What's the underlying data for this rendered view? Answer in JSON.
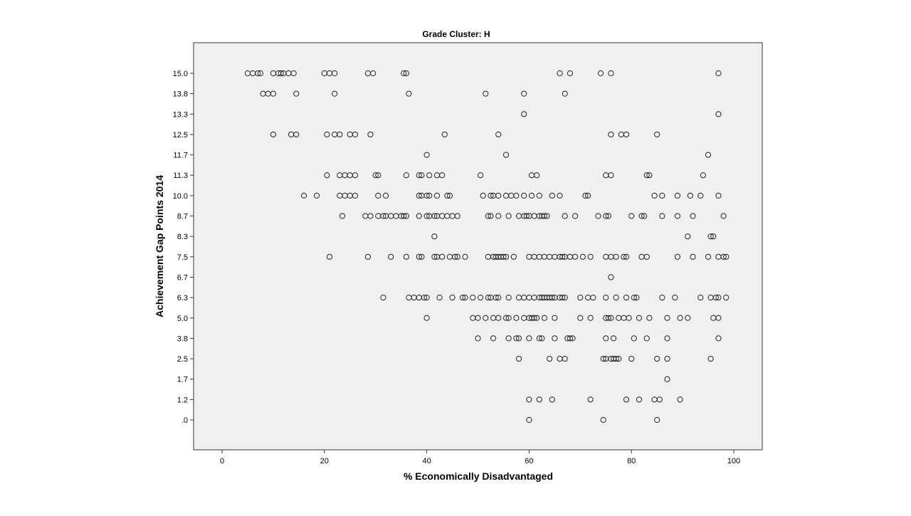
{
  "chart_data": {
    "type": "scatter",
    "title": "Grade Cluster: H",
    "xlabel": "% Economically Disadvantaged",
    "ylabel": "Achievement Gap Points 2014",
    "xlim": [
      -6,
      106
    ],
    "x_ticks": [
      0,
      20,
      40,
      60,
      80,
      100
    ],
    "x_tick_labels": [
      "0",
      "20",
      "40",
      "60",
      "80",
      "100"
    ],
    "y_categories": [
      ".0",
      "1.2",
      "1.7",
      "2.5",
      "3.8",
      "5.0",
      "6.3",
      "6.7",
      "7.5",
      "8.3",
      "8.7",
      "10.0",
      "11.3",
      "11.7",
      "12.5",
      "13.3",
      "13.8",
      "15.0"
    ],
    "grid": false,
    "colors": {
      "plot_background": "#f0f0f0",
      "marker_stroke": "#222222"
    },
    "points": [
      {
        "y": "15.0",
        "x": [
          5,
          6,
          7,
          7.5,
          10,
          11,
          11.5,
          12,
          13,
          14,
          20,
          21,
          22,
          28.5,
          29.5,
          35.5,
          36,
          66,
          68,
          74,
          76,
          97
        ]
      },
      {
        "y": "13.8",
        "x": [
          8,
          9,
          10,
          14.5,
          22,
          36.5,
          51.5,
          59,
          67
        ]
      },
      {
        "y": "13.3",
        "x": [
          59,
          97
        ]
      },
      {
        "y": "12.5",
        "x": [
          10,
          13.5,
          14.5,
          20.5,
          22,
          23,
          25,
          26,
          29,
          43.5,
          54,
          76,
          78,
          79,
          85
        ]
      },
      {
        "y": "11.7",
        "x": [
          40,
          55.5,
          95
        ]
      },
      {
        "y": "11.3",
        "x": [
          20.5,
          23,
          24,
          25,
          26,
          30,
          30.5,
          36,
          38.5,
          39,
          40.5,
          42,
          43,
          50.5,
          60.5,
          61.5,
          75,
          76,
          83,
          83.5,
          94
        ]
      },
      {
        "y": "10.0",
        "x": [
          16,
          18.5,
          23,
          24,
          25,
          26,
          30.5,
          32,
          38.5,
          39,
          40,
          40.5,
          42,
          44,
          44.5,
          51,
          52.5,
          53,
          54,
          55.5,
          56.5,
          57.5,
          59,
          60.5,
          62,
          64.5,
          66,
          71,
          71.5,
          84.5,
          86,
          89,
          91.5,
          93.5,
          97
        ]
      },
      {
        "y": "8.7",
        "x": [
          23.5,
          28,
          29,
          30.5,
          31.5,
          32,
          33,
          34,
          35,
          35.5,
          36,
          38.5,
          40,
          40.5,
          41.5,
          42,
          43,
          44,
          45,
          46,
          52,
          52.5,
          54,
          56,
          58,
          59,
          59.5,
          60,
          61,
          62,
          62.5,
          63,
          63.5,
          67,
          69,
          73.5,
          75,
          75.5,
          80,
          82,
          82.5,
          86,
          89,
          92,
          98
        ]
      },
      {
        "y": "8.3",
        "x": [
          41.5,
          91,
          95.5,
          96
        ]
      },
      {
        "y": "7.5",
        "x": [
          21,
          28.5,
          33,
          36,
          38.5,
          39,
          41.5,
          42,
          43,
          44.5,
          45.5,
          46,
          47.5,
          52,
          53,
          53.5,
          54,
          54.5,
          55,
          55.5,
          57,
          60,
          61,
          62,
          63,
          64,
          65,
          66,
          66.5,
          67,
          68,
          69,
          70.5,
          72,
          75,
          76,
          77,
          78.5,
          79,
          82,
          83,
          89,
          92,
          95,
          97,
          98,
          98.5
        ]
      },
      {
        "y": "6.7",
        "x": [
          76
        ]
      },
      {
        "y": "6.3",
        "x": [
          31.5,
          36.5,
          37.5,
          38.5,
          39.5,
          40,
          42.5,
          45,
          47,
          47.5,
          49,
          50.5,
          52,
          52.5,
          53.5,
          54,
          56,
          58,
          59,
          60,
          61,
          62,
          62.5,
          63,
          63.5,
          64,
          64.5,
          65,
          66,
          66.5,
          67,
          70,
          71.5,
          72.5,
          75,
          77,
          79,
          80.5,
          81,
          86,
          88.5,
          93.5,
          95.5,
          96.5,
          97,
          98.5
        ]
      },
      {
        "y": "5.0",
        "x": [
          40,
          49,
          50,
          51.5,
          53,
          54,
          55.5,
          56,
          57.5,
          59,
          60,
          60.5,
          61,
          61.5,
          63,
          65,
          70,
          72,
          75,
          75.5,
          76,
          77.5,
          78.5,
          79.5,
          81.5,
          83.5,
          87,
          89.5,
          91,
          96,
          97
        ]
      },
      {
        "y": "3.8",
        "x": [
          50,
          53,
          56,
          57.5,
          58,
          60,
          62,
          62.5,
          65,
          67.5,
          68,
          68.5,
          75,
          76.5,
          80.5,
          83,
          87,
          97
        ]
      },
      {
        "y": "2.5",
        "x": [
          58,
          64,
          66,
          67,
          74.5,
          75,
          76,
          76.5,
          77,
          77.5,
          80,
          85,
          87,
          95.5
        ]
      },
      {
        "y": "1.7",
        "x": [
          87
        ]
      },
      {
        "y": "1.2",
        "x": [
          60,
          62,
          64.5,
          72,
          79,
          81.5,
          84.5,
          85.5,
          89.5
        ]
      },
      {
        "y": ".0",
        "x": [
          60,
          74.5,
          85
        ]
      }
    ]
  }
}
